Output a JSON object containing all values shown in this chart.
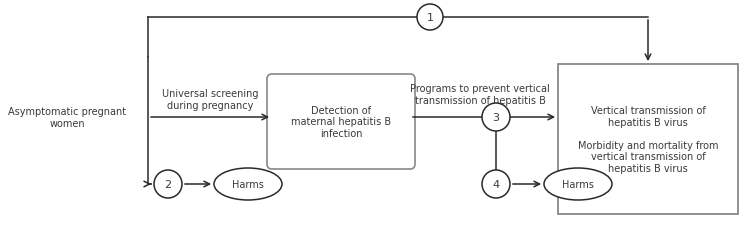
{
  "bg_color": "#ffffff",
  "text_color": "#3a3a3a",
  "arrow_color": "#2a2a2a",
  "left_label": "Asymptomatic pregnant\nwomen",
  "screening_label": "Universal screening\nduring pregnancy",
  "detection_box_label": "Detection of\nmaternal hepatitis B\ninfection",
  "programs_label": "Programs to prevent vertical\ntransmission of hepatitis B",
  "outcomes_label": "Vertical transmission of\nhepatitis B virus\n\nMorbidity and mortality from\nvertical transmission of\nhepatitis B virus",
  "harms_label": "Harms",
  "kq1": "1",
  "kq2": "2",
  "kq3": "3",
  "kq4": "4",
  "font_size_main": 7.0,
  "font_size_kq": 8.0
}
